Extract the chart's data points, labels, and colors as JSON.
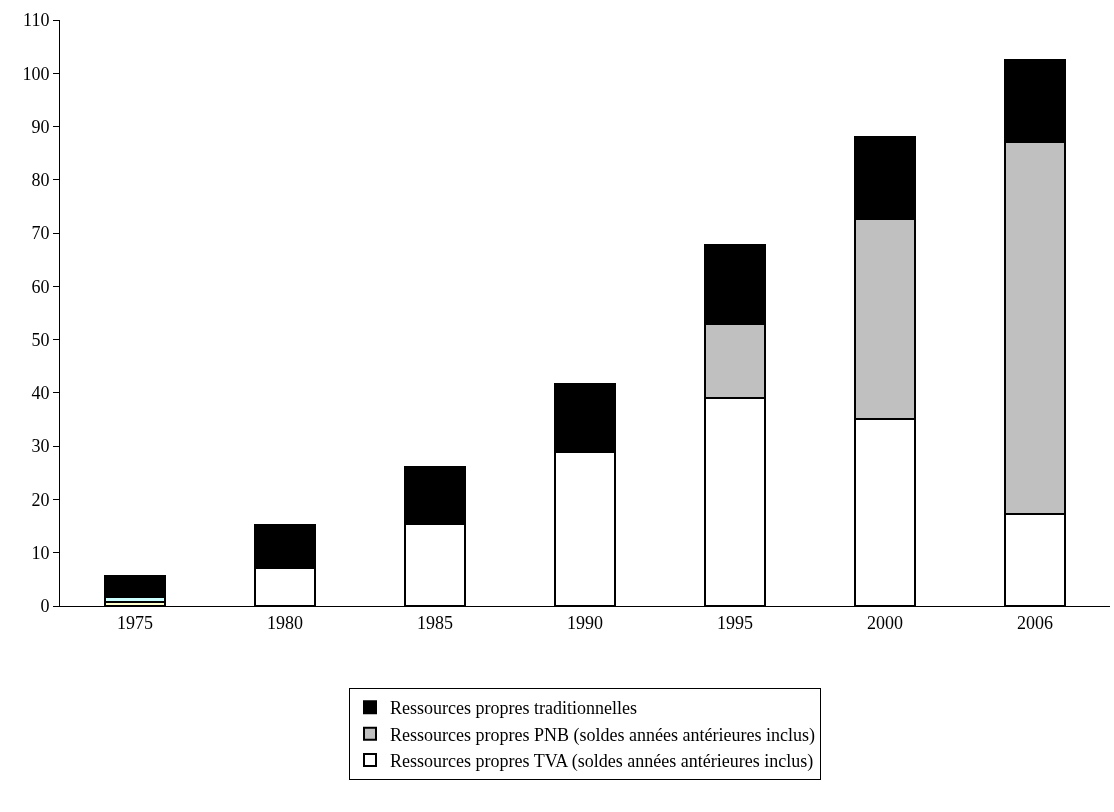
{
  "chart_data": {
    "type": "bar",
    "stacked": true,
    "categories": [
      "1975",
      "1980",
      "1985",
      "1990",
      "1995",
      "2000",
      "2006"
    ],
    "series": [
      {
        "name": "Ressources propres TVA (soldes années antérieures inclus)",
        "color": "#ffffff",
        "values": [
          null,
          7.1,
          15.3,
          29.0,
          39.1,
          35.1,
          17.3
        ]
      },
      {
        "color": "#ffffcc",
        "values": [
          0.8,
          null,
          null,
          null,
          null,
          null,
          null
        ]
      },
      {
        "color": "#ccffff",
        "values": [
          0.8,
          null,
          null,
          null,
          null,
          null,
          null
        ]
      },
      {
        "name": "Ressources propres PNB (soldes années antérieures inclus)",
        "color": "#c0c0c0",
        "values": [
          null,
          null,
          null,
          null,
          13.9,
          37.5,
          69.8
        ]
      },
      {
        "name": "Ressources propres traditionnelles",
        "color": "#000000",
        "values": [
          4.0,
          8.1,
          10.8,
          12.6,
          14.8,
          15.4,
          15.4
        ]
      }
    ],
    "ylim": [
      0,
      110
    ],
    "yticks": [
      0,
      10,
      20,
      30,
      40,
      50,
      60,
      70,
      80,
      90,
      100,
      110
    ],
    "grid": false,
    "legend": "bottom"
  }
}
